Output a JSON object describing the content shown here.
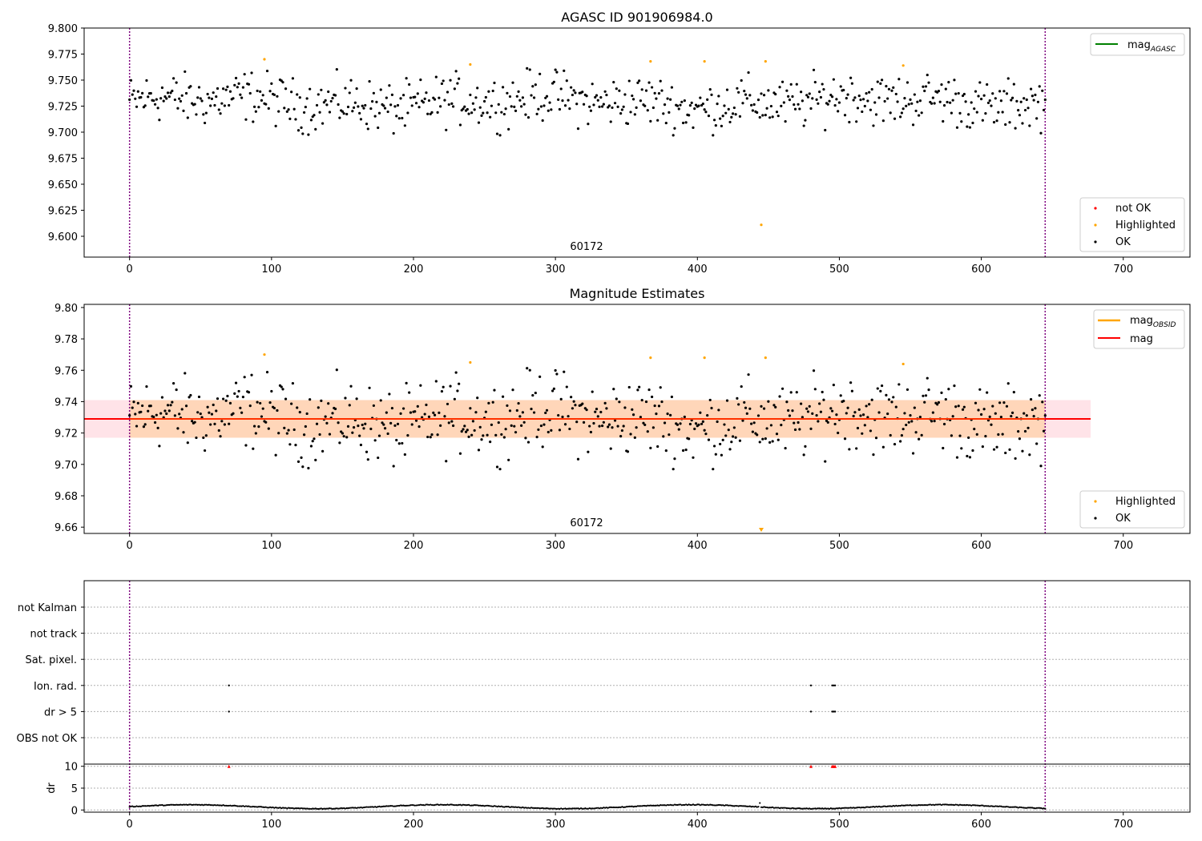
{
  "chart_data": [
    {
      "type": "scatter",
      "title": "AGASC ID 901906984.0",
      "annotation": "60172",
      "xlim": [
        -32,
        747
      ],
      "ylim": [
        9.58,
        9.8
      ],
      "xticks": [
        0,
        100,
        200,
        300,
        400,
        500,
        600,
        700
      ],
      "yticks": [
        9.6,
        9.625,
        9.65,
        9.675,
        9.7,
        9.725,
        9.75,
        9.775,
        9.8
      ],
      "ytick_decimals": 3,
      "vlines": [
        0,
        645
      ],
      "grid": false,
      "legend_lines": [
        {
          "label": "mag",
          "subscript": "AGASC",
          "color": "#008000"
        }
      ],
      "legend_points": [
        {
          "label": "not OK",
          "color": "#ff0000"
        },
        {
          "label": "Highlighted",
          "color": "#ffa500"
        },
        {
          "label": "OK",
          "color": "#000000"
        }
      ],
      "series": [
        {
          "name": "OK",
          "type": "scatter",
          "color": "#000000",
          "points": "generated: 646 points, x 0-645, mag about 9.697-9.762 around 9.729"
        },
        {
          "name": "Highlighted",
          "type": "scatter",
          "color": "#ffa500",
          "x": [
            95,
            240,
            367,
            405,
            445,
            448,
            545
          ],
          "y": [
            9.77,
            9.765,
            9.768,
            9.768,
            9.611,
            9.768,
            9.764
          ]
        }
      ]
    },
    {
      "type": "scatter",
      "title": "Magnitude Estimates",
      "annotation": "60172",
      "xlim": [
        -32,
        747
      ],
      "ylim": [
        9.656,
        9.802
      ],
      "xticks": [
        0,
        100,
        200,
        300,
        400,
        500,
        600,
        700
      ],
      "yticks": [
        9.66,
        9.68,
        9.7,
        9.72,
        9.74,
        9.76,
        9.78,
        9.8
      ],
      "ytick_decimals": 2,
      "vlines": [
        0,
        645
      ],
      "grid": false,
      "mag": 9.729,
      "mag_band_outer": {
        "x": [
          -32,
          677
        ],
        "y": [
          9.717,
          9.741
        ],
        "color": "#ffc0cb"
      },
      "mag_band_obsid": {
        "x": [
          0,
          645
        ],
        "y": [
          9.717,
          9.741
        ],
        "color": "#ffa500"
      },
      "legend_lines": [
        {
          "label": "mag",
          "subscript": "OBSID",
          "color": "#ffa500"
        },
        {
          "label": "mag",
          "subscript": "",
          "color": "#ff0000"
        }
      ],
      "legend_points": [
        {
          "label": "Highlighted",
          "color": "#ffa500"
        },
        {
          "label": "OK",
          "color": "#000000"
        }
      ],
      "series": [
        {
          "name": "OK",
          "type": "scatter",
          "color": "#000000",
          "points": "same as panel 1"
        },
        {
          "name": "Highlighted",
          "type": "scatter",
          "color": "#ffa500",
          "x": [
            95,
            240,
            367,
            405,
            448,
            545
          ],
          "y": [
            9.77,
            9.765,
            9.768,
            9.768,
            9.768,
            9.764
          ]
        }
      ],
      "off_scale_marker": {
        "x": 445,
        "color": "#ffa500"
      }
    },
    {
      "type": "scatter",
      "title": "",
      "xlim": [
        -32,
        747
      ],
      "xticks": [
        0,
        100,
        200,
        300,
        400,
        500,
        600,
        700
      ],
      "vlines": [
        0,
        645
      ],
      "flag_rows": [
        "not Kalman",
        "not track",
        "Sat. pixel.",
        "Ion. rad.",
        "dr > 5",
        "OBS not OK"
      ],
      "flag_points": [
        {
          "row": "Ion. rad.",
          "x": [
            70,
            480,
            495,
            496,
            497
          ]
        },
        {
          "row": "dr > 5",
          "x": [
            70,
            480,
            495,
            496,
            497
          ]
        }
      ],
      "dr_ylabel": "dr",
      "dr_yticks": [
        0,
        5,
        10
      ],
      "dr_ylim": [
        -0.5,
        10.5
      ],
      "dr_clipped": {
        "x": [
          70,
          480,
          495,
          496,
          497
        ],
        "color": "#ff0000"
      },
      "dr_series": "generated: 646 points, dr about 0.1-1.6, one spike 2.2 at x=444"
    }
  ]
}
